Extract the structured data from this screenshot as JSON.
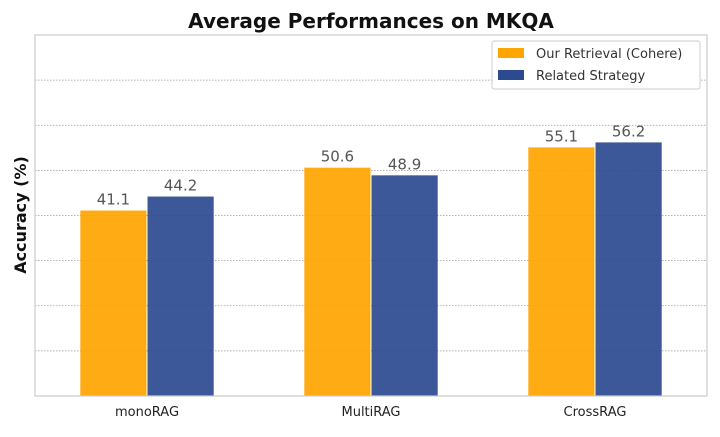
{
  "chart_data": {
    "type": "bar",
    "title": "Average Performances on MKQA",
    "xlabel": "",
    "ylabel": "Accuracy (%)",
    "categories": [
      "monoRAG",
      "MultiRAG",
      "CrossRAG"
    ],
    "series": [
      {
        "name": "Our Retrieval (Cohere)",
        "color": "#FFA500",
        "values": [
          41.1,
          50.6,
          55.1
        ]
      },
      {
        "name": "Related Strategy",
        "color": "#2B4A8F",
        "values": [
          44.2,
          48.9,
          56.2
        ]
      }
    ],
    "ylim": [
      0,
      80
    ],
    "ygrid_step": 10,
    "grid": true,
    "legend_position": "top-right",
    "data_labels": true
  }
}
